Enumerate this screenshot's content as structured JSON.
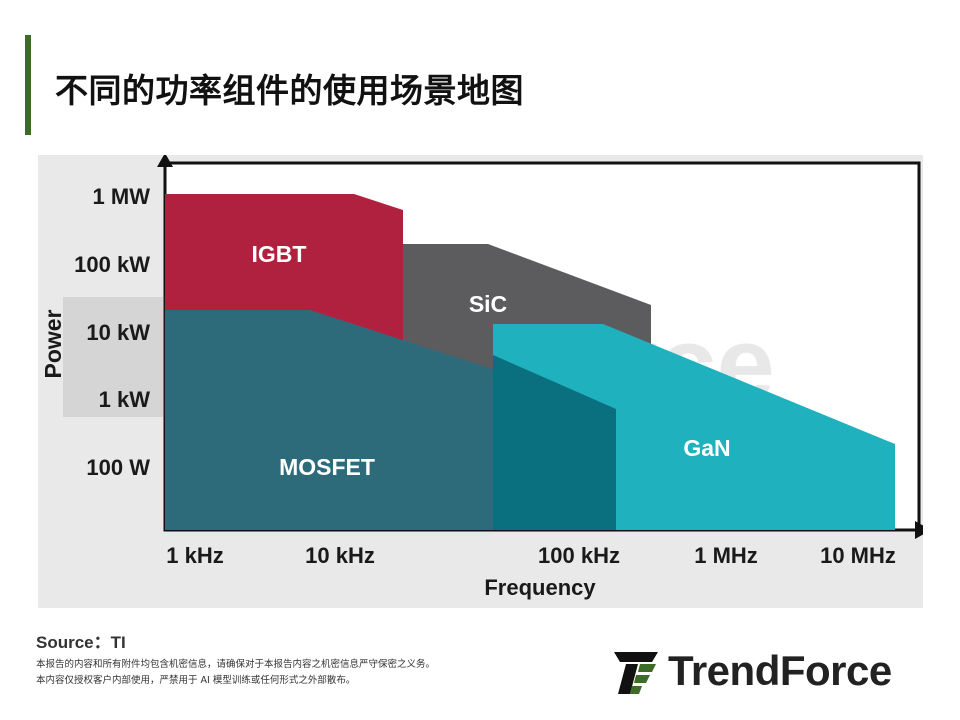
{
  "page": {
    "title": "不同的功率组件的使用场景地图",
    "source": "Source：TI",
    "disclaimer_line1": "本报告的内容和所有附件均包含机密信息，请确保对于本报告内容之机密信息严守保密之义务。",
    "disclaimer_line2": "本内容仅授权客户内部使用，严禁用于 AI 模型训练或任何形式之外部散布。",
    "brand_name": "TrendForce",
    "watermark_text": "TrendForce"
  },
  "colors": {
    "accent": "#3d6b28",
    "igbt": "#b0213f",
    "sic": "#5c5c5f",
    "mosfet": "#2e6b7a",
    "mosfet_overlap": "#0a6f7e",
    "gan": "#1fb1be"
  },
  "chart_data": {
    "type": "area",
    "title": "",
    "xlabel": "Frequency",
    "ylabel": "Power",
    "x_ticks": [
      "1 kHz",
      "10 kHz",
      "100 kHz",
      "1 MHz",
      "10 MHz"
    ],
    "y_ticks": [
      "1 MW",
      "100 kW",
      "10 kW",
      "1 kW",
      "100 W"
    ],
    "x_scale": "log",
    "y_scale": "log",
    "grid": false,
    "legend": "none",
    "series": [
      {
        "name": "IGBT",
        "color": "#b0213f",
        "frequency_range": [
          "1 kHz",
          "15 kHz"
        ],
        "power_range": [
          "1 kW",
          "1 MW"
        ]
      },
      {
        "name": "SiC",
        "color": "#5c5c5f",
        "frequency_range": [
          "15 kHz",
          "200 kHz"
        ],
        "power_range": [
          "3 kW",
          "200 kW"
        ]
      },
      {
        "name": "MOSFET",
        "color": "#2e6b7a",
        "frequency_range": [
          "1 kHz",
          "150 kHz"
        ],
        "power_range": [
          "10 W",
          "15 kW"
        ]
      },
      {
        "name": "GaN",
        "color": "#1fb1be",
        "frequency_range": [
          "50 kHz",
          "10 MHz"
        ],
        "power_range": [
          "10 W",
          "15 kW"
        ]
      }
    ]
  }
}
